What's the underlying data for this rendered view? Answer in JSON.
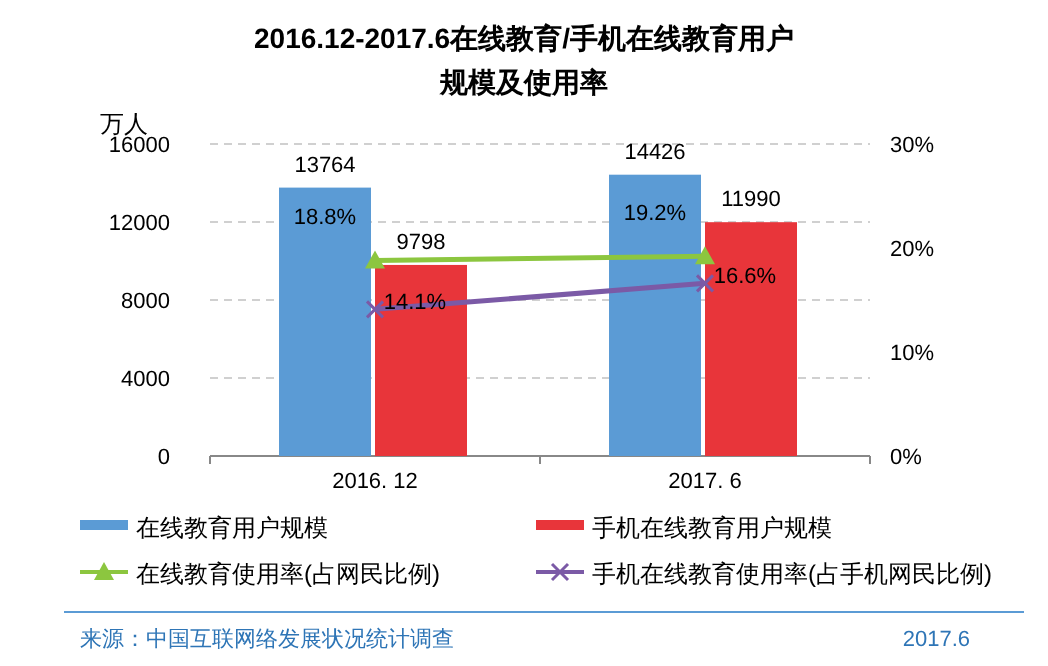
{
  "chart_data": {
    "type": "bar",
    "title": "2016.12-2017.6在线教育/手机在线教育用户规模及使用率",
    "ylabel": "万人",
    "categories": [
      "2016. 12",
      "2017. 6"
    ],
    "series": [
      {
        "name": "在线教育用户规模",
        "color": "#5b9bd5",
        "values": [
          13764,
          14426
        ],
        "value_labels": [
          "13764",
          "14426"
        ]
      },
      {
        "name": "手机在线教育用户规模",
        "color": "#e8353a",
        "values": [
          9798,
          11990
        ],
        "value_labels": [
          "9798",
          "11990"
        ]
      },
      {
        "name": "在线教育使用率(占网民比例)",
        "type": "line",
        "axis": "y2",
        "marker": "triangle",
        "color": "#8cc63f",
        "values": [
          18.8,
          19.2
        ],
        "value_labels": [
          "18.8%",
          "19.2%"
        ]
      },
      {
        "name": "手机在线教育使用率(占手机网民比例)",
        "type": "line",
        "axis": "y2",
        "marker": "cross",
        "color": "#7b5aa6",
        "values": [
          14.1,
          16.6
        ],
        "value_labels": [
          "14.1%",
          "16.6%"
        ]
      }
    ],
    "ylim": [
      0,
      16000
    ],
    "yticks": [
      0,
      4000,
      8000,
      12000,
      16000
    ],
    "y2lim": [
      0,
      30
    ],
    "y2ticks": [
      {
        "value": 0,
        "label": "0%"
      },
      {
        "value": 10,
        "label": "10%"
      },
      {
        "value": 20,
        "label": "20%"
      },
      {
        "value": 30,
        "label": "30%"
      }
    ],
    "grid": "y",
    "legend": "bottom",
    "annotations": [
      "来源：中国互联网络发展状况统计调查",
      "2017.6"
    ]
  }
}
